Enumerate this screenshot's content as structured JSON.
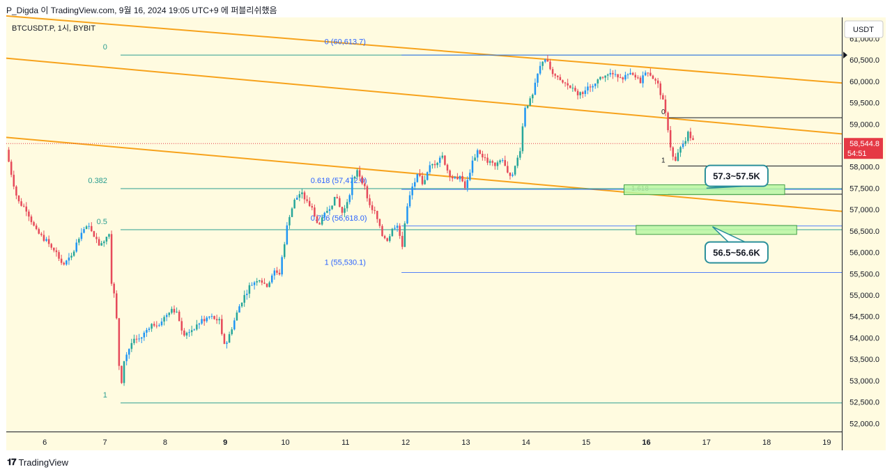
{
  "header": {
    "publisher": "P_Digda 이 TradingView.com, 9월 16, 2024 19:05 UTC+9 에 퍼블리쉬했음"
  },
  "brand": {
    "name": "TradingView",
    "icon": "tradingview-logo-icon"
  },
  "colors": {
    "bull": "#26a69a",
    "bull_alt": "#2196f3",
    "bear": "#e64a5a",
    "channel": "#f7a21b",
    "fib_teal": "#2a9d8f",
    "fib_blue": "#2962ff",
    "zone_fill": "#b9f6a3",
    "zone_stroke": "#43a047",
    "price_tag": "#e53945",
    "bg": "#fffbe0"
  },
  "chart_data": {
    "type": "candlestick",
    "symbol_label": "BTCUSDT.P, 1시, BYBIT",
    "currency_button": "USDT",
    "x_ticks": [
      {
        "label": "6",
        "bold": false
      },
      {
        "label": "7",
        "bold": false
      },
      {
        "label": "8",
        "bold": false
      },
      {
        "label": "9",
        "bold": true
      },
      {
        "label": "10",
        "bold": false
      },
      {
        "label": "11",
        "bold": false
      },
      {
        "label": "12",
        "bold": false
      },
      {
        "label": "13",
        "bold": false
      },
      {
        "label": "14",
        "bold": false
      },
      {
        "label": "15",
        "bold": false
      },
      {
        "label": "16",
        "bold": true
      },
      {
        "label": "17",
        "bold": false
      },
      {
        "label": "18",
        "bold": false
      },
      {
        "label": "19",
        "bold": false
      }
    ],
    "x_range": [
      5.36,
      19.25
    ],
    "y_range": [
      51810,
      61495
    ],
    "y_ticks": [
      {
        "value": 61000,
        "label": "61,000.0"
      },
      {
        "value": 60500,
        "label": "60,500.0"
      },
      {
        "value": 60000,
        "label": "60,000.0"
      },
      {
        "value": 59500,
        "label": "59,500.0"
      },
      {
        "value": 59000,
        "label": "59,000.0"
      },
      {
        "value": 58500,
        "label": "58,500.0"
      },
      {
        "value": 58000,
        "label": "58,000.0"
      },
      {
        "value": 57500,
        "label": "57,500.0"
      },
      {
        "value": 57000,
        "label": "57,000.0"
      },
      {
        "value": 56500,
        "label": "56,500.0"
      },
      {
        "value": 56000,
        "label": "56,000.0"
      },
      {
        "value": 55500,
        "label": "55,500.0"
      },
      {
        "value": 55000,
        "label": "55,000.0"
      },
      {
        "value": 54500,
        "label": "54,500.0"
      },
      {
        "value": 54000,
        "label": "54,000.0"
      },
      {
        "value": 53500,
        "label": "53,500.0"
      },
      {
        "value": 53000,
        "label": "53,000.0"
      },
      {
        "value": 52500,
        "label": "52,500.0"
      },
      {
        "value": 52000,
        "label": "52,000.0"
      }
    ],
    "last_price": {
      "value": 58544.8,
      "label": "58,544.8",
      "countdown": "54:51"
    },
    "close_path": [
      [
        5.36,
        58400
      ],
      [
        5.45,
        57800
      ],
      [
        5.55,
        57200
      ],
      [
        5.7,
        57000
      ],
      [
        5.85,
        56500
      ],
      [
        6.0,
        56300
      ],
      [
        6.15,
        56100
      ],
      [
        6.3,
        55700
      ],
      [
        6.45,
        55900
      ],
      [
        6.6,
        56500
      ],
      [
        6.75,
        56600
      ],
      [
        6.9,
        56200
      ],
      [
        7.0,
        56300
      ],
      [
        7.05,
        56500
      ],
      [
        7.08,
        56400
      ],
      [
        7.1,
        55400
      ],
      [
        7.18,
        54800
      ],
      [
        7.22,
        53700
      ],
      [
        7.26,
        52800
      ],
      [
        7.32,
        53500
      ],
      [
        7.45,
        53900
      ],
      [
        7.6,
        54000
      ],
      [
        7.75,
        54300
      ],
      [
        7.9,
        54350
      ],
      [
        8.0,
        54500
      ],
      [
        8.1,
        54700
      ],
      [
        8.2,
        54600
      ],
      [
        8.3,
        54100
      ],
      [
        8.45,
        54200
      ],
      [
        8.6,
        54400
      ],
      [
        8.75,
        54500
      ],
      [
        8.9,
        54400
      ],
      [
        9.0,
        53800
      ],
      [
        9.1,
        54200
      ],
      [
        9.25,
        54800
      ],
      [
        9.4,
        55200
      ],
      [
        9.55,
        55400
      ],
      [
        9.7,
        55200
      ],
      [
        9.8,
        55600
      ],
      [
        9.9,
        55500
      ],
      [
        10.05,
        56800
      ],
      [
        10.15,
        57200
      ],
      [
        10.25,
        57400
      ],
      [
        10.35,
        57200
      ],
      [
        10.45,
        57000
      ],
      [
        10.55,
        56600
      ],
      [
        10.7,
        57000
      ],
      [
        10.85,
        57300
      ],
      [
        10.95,
        56900
      ],
      [
        11.05,
        57200
      ],
      [
        11.1,
        57700
      ],
      [
        11.2,
        57900
      ],
      [
        11.3,
        57600
      ],
      [
        11.4,
        57100
      ],
      [
        11.5,
        56900
      ],
      [
        11.6,
        56400
      ],
      [
        11.7,
        56300
      ],
      [
        11.8,
        56600
      ],
      [
        11.88,
        56700
      ],
      [
        11.93,
        56000
      ],
      [
        12.0,
        56900
      ],
      [
        12.1,
        57500
      ],
      [
        12.2,
        57800
      ],
      [
        12.3,
        57600
      ],
      [
        12.4,
        58000
      ],
      [
        12.5,
        58100
      ],
      [
        12.6,
        58300
      ],
      [
        12.7,
        57900
      ],
      [
        12.8,
        57700
      ],
      [
        12.9,
        57800
      ],
      [
        13.0,
        57500
      ],
      [
        13.1,
        58100
      ],
      [
        13.2,
        58400
      ],
      [
        13.3,
        58200
      ],
      [
        13.4,
        58100
      ],
      [
        13.5,
        58000
      ],
      [
        13.6,
        58200
      ],
      [
        13.7,
        57800
      ],
      [
        13.8,
        57900
      ],
      [
        13.9,
        58400
      ],
      [
        13.98,
        59400
      ],
      [
        14.1,
        59600
      ],
      [
        14.2,
        60200
      ],
      [
        14.3,
        60580
      ],
      [
        14.4,
        60300
      ],
      [
        14.55,
        60000
      ],
      [
        14.7,
        59900
      ],
      [
        14.85,
        59700
      ],
      [
        15.0,
        59800
      ],
      [
        15.15,
        60000
      ],
      [
        15.3,
        60100
      ],
      [
        15.45,
        60200
      ],
      [
        15.6,
        60100
      ],
      [
        15.75,
        60150
      ],
      [
        15.9,
        60000
      ],
      [
        16.0,
        60300
      ],
      [
        16.1,
        60100
      ],
      [
        16.2,
        59900
      ],
      [
        16.28,
        59500
      ],
      [
        16.35,
        59000
      ],
      [
        16.42,
        58300
      ],
      [
        16.48,
        58100
      ],
      [
        16.55,
        58400
      ],
      [
        16.62,
        58500
      ],
      [
        16.7,
        58800
      ],
      [
        16.8,
        58544.8
      ]
    ],
    "channel_lines": [
      {
        "from": [
          5.36,
          61530
        ],
        "to": [
          19.25,
          59960
        ]
      },
      {
        "from": [
          5.36,
          60540
        ],
        "to": [
          19.25,
          58770
        ]
      },
      {
        "from": [
          5.36,
          58690
        ],
        "to": [
          19.25,
          56960
        ]
      }
    ],
    "fib_left": {
      "x_start": 7.26,
      "x_end": 19.25,
      "label_x": 6.9,
      "levels": [
        {
          "ratio_label": "0",
          "price": 60613.7
        },
        {
          "ratio_label": "0.382",
          "price": 57490
        },
        {
          "ratio_label": "0.5",
          "price": 56530
        },
        {
          "ratio_label": "1",
          "price": 52480
        }
      ]
    },
    "fib_right": {
      "x_start": 11.93,
      "x_end": 19.25,
      "levels": [
        {
          "label": "0 (60,613.7)",
          "price": 60613.7,
          "label_x": 10.65,
          "label_y": 60870
        },
        {
          "label": "0.618 (57,472.0)",
          "price": 57472.0,
          "label_x": 10.42,
          "label_y": 57620
        },
        {
          "label": "0.786 (56,618.0)",
          "price": 56618.0,
          "label_x": 10.42,
          "label_y": 56745
        },
        {
          "label": "1 (55,530.1)",
          "price": 55530.1,
          "label_x": 10.65,
          "label_y": 55705
        }
      ]
    },
    "fib_small": {
      "x_start": 16.36,
      "x_end": 19.25,
      "levels": [
        {
          "label": "0",
          "price": 59150
        },
        {
          "label": "1",
          "price": 58020
        },
        {
          "label": "1.618",
          "price": 57360
        }
      ]
    },
    "zones": [
      {
        "x": [
          15.63,
          18.3
        ],
        "y": [
          57350,
          57580
        ],
        "label": "57.3~57.5K",
        "callout_at": [
          17.5,
          57790
        ],
        "pointer_to": [
          17.0,
          57500
        ]
      },
      {
        "x": [
          15.83,
          18.5
        ],
        "y": [
          56420,
          56630
        ],
        "label": "56.5~56.6K",
        "callout_at": [
          17.5,
          56000
        ],
        "pointer_to": [
          17.1,
          56600
        ]
      }
    ]
  }
}
